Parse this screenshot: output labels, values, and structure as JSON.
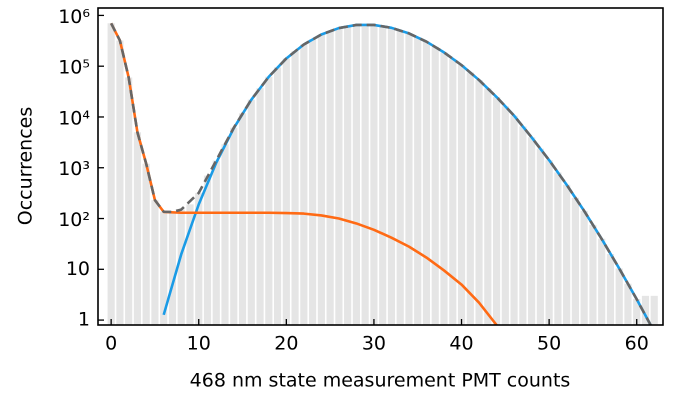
{
  "chart_data": {
    "type": "histogram",
    "xlabel": "468 nm state measurement PMT counts",
    "ylabel": "Occurrences",
    "yscale": "log",
    "xlim": [
      -1.5,
      63
    ],
    "ylim": [
      0.8,
      1400000
    ],
    "xticks": [
      0,
      10,
      20,
      30,
      40,
      50,
      60
    ],
    "yticks": [
      1,
      10,
      {
        "value": 100,
        "label": "10²"
      },
      {
        "value": 1000,
        "label": "10³"
      },
      {
        "value": 10000,
        "label": "10⁴"
      },
      {
        "value": 100000,
        "label": "10⁵"
      },
      {
        "value": 1000000,
        "label": "10⁶"
      }
    ],
    "bar_color": "#e5e5e5",
    "bins": [
      -0.5,
      0.5,
      1.5,
      2.5,
      3.5,
      4.5,
      5.5,
      6.5,
      7.5,
      8.5,
      9.5,
      10.5,
      11.5,
      12.5,
      13.5,
      14.5,
      15.5,
      16.5,
      17.5,
      18.5,
      19.5,
      20.5,
      21.5,
      22.5,
      23.5,
      24.5,
      25.5,
      26.5,
      27.5,
      28.5,
      29.5,
      30.5,
      31.5,
      32.5,
      33.5,
      34.5,
      35.5,
      36.5,
      37.5,
      38.5,
      39.5,
      40.5,
      41.5,
      42.5,
      43.5,
      44.5,
      45.5,
      46.5,
      47.5,
      48.5,
      49.5,
      50.5,
      51.5,
      52.5,
      53.5,
      54.5,
      55.5,
      56.5,
      57.5,
      58.5,
      59.5,
      60.5,
      61.5,
      62.5
    ],
    "counts": [
      700000,
      320000,
      60000,
      5000,
      1200,
      230,
      136,
      135,
      150,
      190,
      320,
      700,
      1390,
      2900,
      6140,
      11800,
      21900,
      37000,
      62000,
      95000,
      142000,
      198000,
      268000,
      340000,
      421000,
      490000,
      564000,
      610000,
      649000,
      655000,
      650000,
      615000,
      570000,
      505000,
      442000,
      370000,
      304000,
      240000,
      187000,
      140000,
      105000,
      75000,
      53300,
      36500,
      24700,
      16200,
      10600,
      6500,
      3970,
      2370,
      1410,
      810,
      463,
      256,
      141,
      75,
      40,
      20,
      10.4,
      5.2,
      2.6,
      3,
      3
    ],
    "series": [
      {
        "color": "#1a9be6",
        "style": "solid",
        "x": [
          6,
          8,
          10,
          12,
          14,
          16,
          18,
          20,
          22,
          24,
          26,
          28,
          30,
          32,
          34,
          36,
          38,
          40,
          42,
          44,
          46,
          48,
          50,
          52,
          54,
          56,
          58,
          60,
          62
        ],
        "values": [
          1.27,
          19.7,
          190,
          1260,
          6010,
          21800,
          61900,
          142000,
          268000,
          421000,
          564000,
          649000,
          650000,
          570000,
          442000,
          304000,
          187000,
          105000,
          53300,
          24700,
          10600,
          3970,
          1410,
          463,
          141,
          39.6,
          10.4,
          2.57,
          0.59
        ]
      },
      {
        "color": "#ff6a14",
        "style": "solid",
        "x": [
          0,
          1,
          2,
          3,
          4,
          5,
          6,
          8,
          10,
          14,
          18,
          20,
          22,
          24,
          26,
          28,
          30,
          32,
          34,
          36,
          38,
          40,
          42,
          44
        ],
        "values": [
          700000,
          320000,
          60000,
          5000,
          1200,
          230,
          135,
          130,
          130,
          130,
          130,
          128,
          125,
          115,
          100,
          80,
          60,
          42,
          28,
          17,
          9.5,
          5,
          2.2,
          0.8
        ]
      },
      {
        "color": "#666666",
        "style": "dashed",
        "x": [
          0,
          1,
          2,
          3,
          4,
          5,
          6,
          7,
          8,
          10,
          12,
          14,
          16,
          18,
          20,
          22,
          24,
          26,
          28,
          30,
          32,
          34,
          36,
          38,
          40,
          42,
          44,
          46,
          48,
          50,
          52,
          54,
          56,
          58,
          60,
          62
        ],
        "values": [
          700000,
          320000,
          60000,
          5000,
          1200,
          230,
          136,
          135,
          150,
          320,
          1390,
          6140,
          21900,
          62000,
          142000,
          268000,
          421000,
          564000,
          649000,
          650000,
          570000,
          442000,
          304000,
          187000,
          105000,
          53300,
          24700,
          10600,
          3970,
          1410,
          463,
          141,
          39.6,
          10.4,
          2.57,
          0.59
        ]
      }
    ]
  }
}
